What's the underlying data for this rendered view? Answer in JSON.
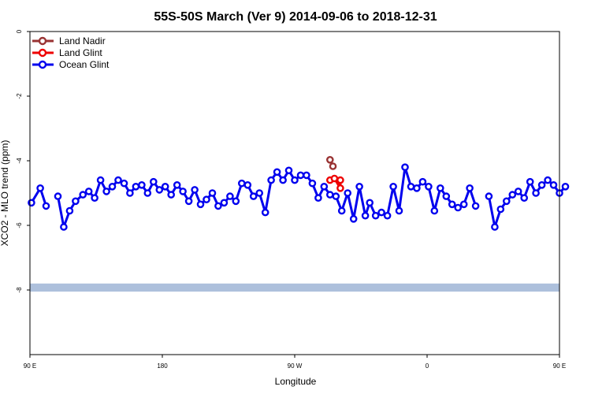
{
  "chart_data": {
    "type": "line",
    "title": "55S-50S March (Ver 9)   2014-09-06 to 2018-12-31",
    "xlabel": "Longitude",
    "ylabel": "XCO2 - MLO trend (ppm)",
    "xlim": [
      90,
      450
    ],
    "ylim": [
      -10,
      0
    ],
    "x_ticks": [
      {
        "value": 90,
        "label": "90 E"
      },
      {
        "value": 180,
        "label": "180"
      },
      {
        "value": 270,
        "label": "90 W"
      },
      {
        "value": 360,
        "label": "0"
      },
      {
        "value": 450,
        "label": "90 E"
      },
      {
        "value": 540,
        "label": "180"
      }
    ],
    "y_ticks": [
      {
        "value": 0,
        "label": "0"
      },
      {
        "value": -2,
        "label": "-2"
      },
      {
        "value": -4,
        "label": "-4"
      },
      {
        "value": -6,
        "label": "-6"
      },
      {
        "value": -8,
        "label": "-8"
      }
    ],
    "grid": false,
    "legend_position": "top-left",
    "series": [
      {
        "name": "Land Nadir",
        "color": "#993333",
        "points": [
          [
            294,
            -3.97
          ],
          [
            296,
            -4.17
          ]
        ]
      },
      {
        "name": "Land Glint",
        "color": "#ee0000",
        "points": [
          [
            294,
            -4.6
          ],
          [
            297,
            -4.55
          ],
          [
            301,
            -4.85
          ],
          [
            301,
            -4.6
          ]
        ]
      },
      {
        "name": "Ocean Glint",
        "color": "#0000ee",
        "segments": [
          [
            [
              91,
              -5.3
            ],
            [
              97,
              -4.85
            ],
            [
              101,
              -5.4
            ]
          ],
          [
            [
              109,
              -5.1
            ],
            [
              113,
              -6.05
            ],
            [
              117,
              -5.55
            ],
            [
              121,
              -5.25
            ],
            [
              126,
              -5.05
            ],
            [
              130,
              -4.95
            ],
            [
              134,
              -5.15
            ],
            [
              138,
              -4.6
            ],
            [
              142,
              -4.95
            ],
            [
              146,
              -4.8
            ],
            [
              150,
              -4.6
            ],
            [
              154,
              -4.7
            ],
            [
              158,
              -5.0
            ],
            [
              162,
              -4.8
            ],
            [
              166,
              -4.75
            ],
            [
              170,
              -5.0
            ],
            [
              174,
              -4.65
            ],
            [
              178,
              -4.9
            ],
            [
              182,
              -4.8
            ],
            [
              186,
              -5.05
            ],
            [
              190,
              -4.75
            ],
            [
              194,
              -4.95
            ],
            [
              198,
              -5.25
            ],
            [
              202,
              -4.9
            ],
            [
              206,
              -5.35
            ],
            [
              210,
              -5.2
            ],
            [
              214,
              -5.0
            ],
            [
              218,
              -5.4
            ],
            [
              222,
              -5.3
            ],
            [
              226,
              -5.1
            ],
            [
              230,
              -5.25
            ],
            [
              234,
              -4.7
            ],
            [
              238,
              -4.75
            ],
            [
              242,
              -5.1
            ],
            [
              246,
              -5.0
            ],
            [
              250,
              -5.6
            ],
            [
              254,
              -4.6
            ],
            [
              258,
              -4.35
            ],
            [
              262,
              -4.6
            ],
            [
              266,
              -4.3
            ],
            [
              270,
              -4.6
            ],
            [
              274,
              -4.45
            ],
            [
              278,
              -4.45
            ],
            [
              282,
              -4.7
            ],
            [
              286,
              -5.15
            ],
            [
              290,
              -4.8
            ],
            [
              294,
              -5.05
            ],
            [
              298,
              -5.1
            ],
            [
              302,
              -5.55
            ],
            [
              306,
              -5.0
            ],
            [
              310,
              -5.8
            ],
            [
              314,
              -4.8
            ],
            [
              318,
              -5.7
            ],
            [
              321,
              -5.3
            ],
            [
              325,
              -5.7
            ],
            [
              329,
              -5.6
            ],
            [
              333,
              -5.7
            ],
            [
              337,
              -4.8
            ],
            [
              341,
              -5.55
            ],
            [
              345,
              -4.2
            ],
            [
              349,
              -4.8
            ],
            [
              353,
              -4.85
            ],
            [
              357,
              -4.65
            ],
            [
              361,
              -4.8
            ],
            [
              365,
              -5.55
            ],
            [
              369,
              -4.85
            ],
            [
              373,
              -5.1
            ],
            [
              377,
              -5.35
            ],
            [
              381,
              -5.45
            ],
            [
              385,
              -5.35
            ],
            [
              389,
              -4.85
            ],
            [
              393,
              -5.4
            ]
          ],
          [
            [
              402,
              -5.1
            ],
            [
              406,
              -6.05
            ],
            [
              410,
              -5.5
            ],
            [
              414,
              -5.25
            ],
            [
              418,
              -5.05
            ],
            [
              422,
              -4.95
            ],
            [
              426,
              -5.15
            ],
            [
              430,
              -4.65
            ],
            [
              434,
              -5.0
            ],
            [
              438,
              -4.75
            ],
            [
              442,
              -4.6
            ],
            [
              446,
              -4.75
            ],
            [
              450,
              -5.0
            ],
            [
              454,
              -4.8
            ]
          ]
        ]
      }
    ],
    "annotations": [
      {
        "type": "band",
        "y_range": [
          -8.05,
          -7.8
        ],
        "color": "#adc0dc",
        "note": "land mask strip"
      }
    ]
  }
}
